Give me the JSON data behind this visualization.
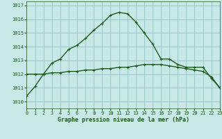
{
  "title": "Graphe pression niveau de la mer (hPa)",
  "background_color": "#c8e8e8",
  "grid_color": "#88bbbb",
  "line_color": "#1a5c1a",
  "xlim": [
    0,
    23
  ],
  "ylim": [
    1009.5,
    1017.3
  ],
  "yticks": [
    1010,
    1011,
    1012,
    1013,
    1014,
    1015,
    1016,
    1017
  ],
  "xticks": [
    0,
    1,
    2,
    3,
    4,
    5,
    6,
    7,
    8,
    9,
    10,
    11,
    12,
    13,
    14,
    15,
    16,
    17,
    18,
    19,
    20,
    21,
    22,
    23
  ],
  "line1": [
    1010.4,
    1011.1,
    1012.0,
    1012.8,
    1013.1,
    1013.8,
    1014.1,
    1014.6,
    1015.2,
    1015.7,
    1016.3,
    1016.5,
    1016.4,
    1015.8,
    1015.0,
    1014.2,
    1013.1,
    1013.1,
    1012.7,
    1012.5,
    1012.5,
    1012.5,
    1011.7,
    1011.0
  ],
  "line2": [
    1012.0,
    1012.0,
    1012.0,
    1012.1,
    1012.1,
    1012.2,
    1012.2,
    1012.3,
    1012.3,
    1012.4,
    1012.4,
    1012.5,
    1012.5,
    1012.6,
    1012.7,
    1012.7,
    1012.7,
    1012.6,
    1012.5,
    1012.4,
    1012.3,
    1012.2,
    1011.8,
    1011.0
  ],
  "marker": "+",
  "markersize": 3.5,
  "linewidth": 1.0,
  "ylabel_fontsize": 5.0,
  "xlabel_fontsize": 5.0,
  "title_fontsize": 6.0
}
